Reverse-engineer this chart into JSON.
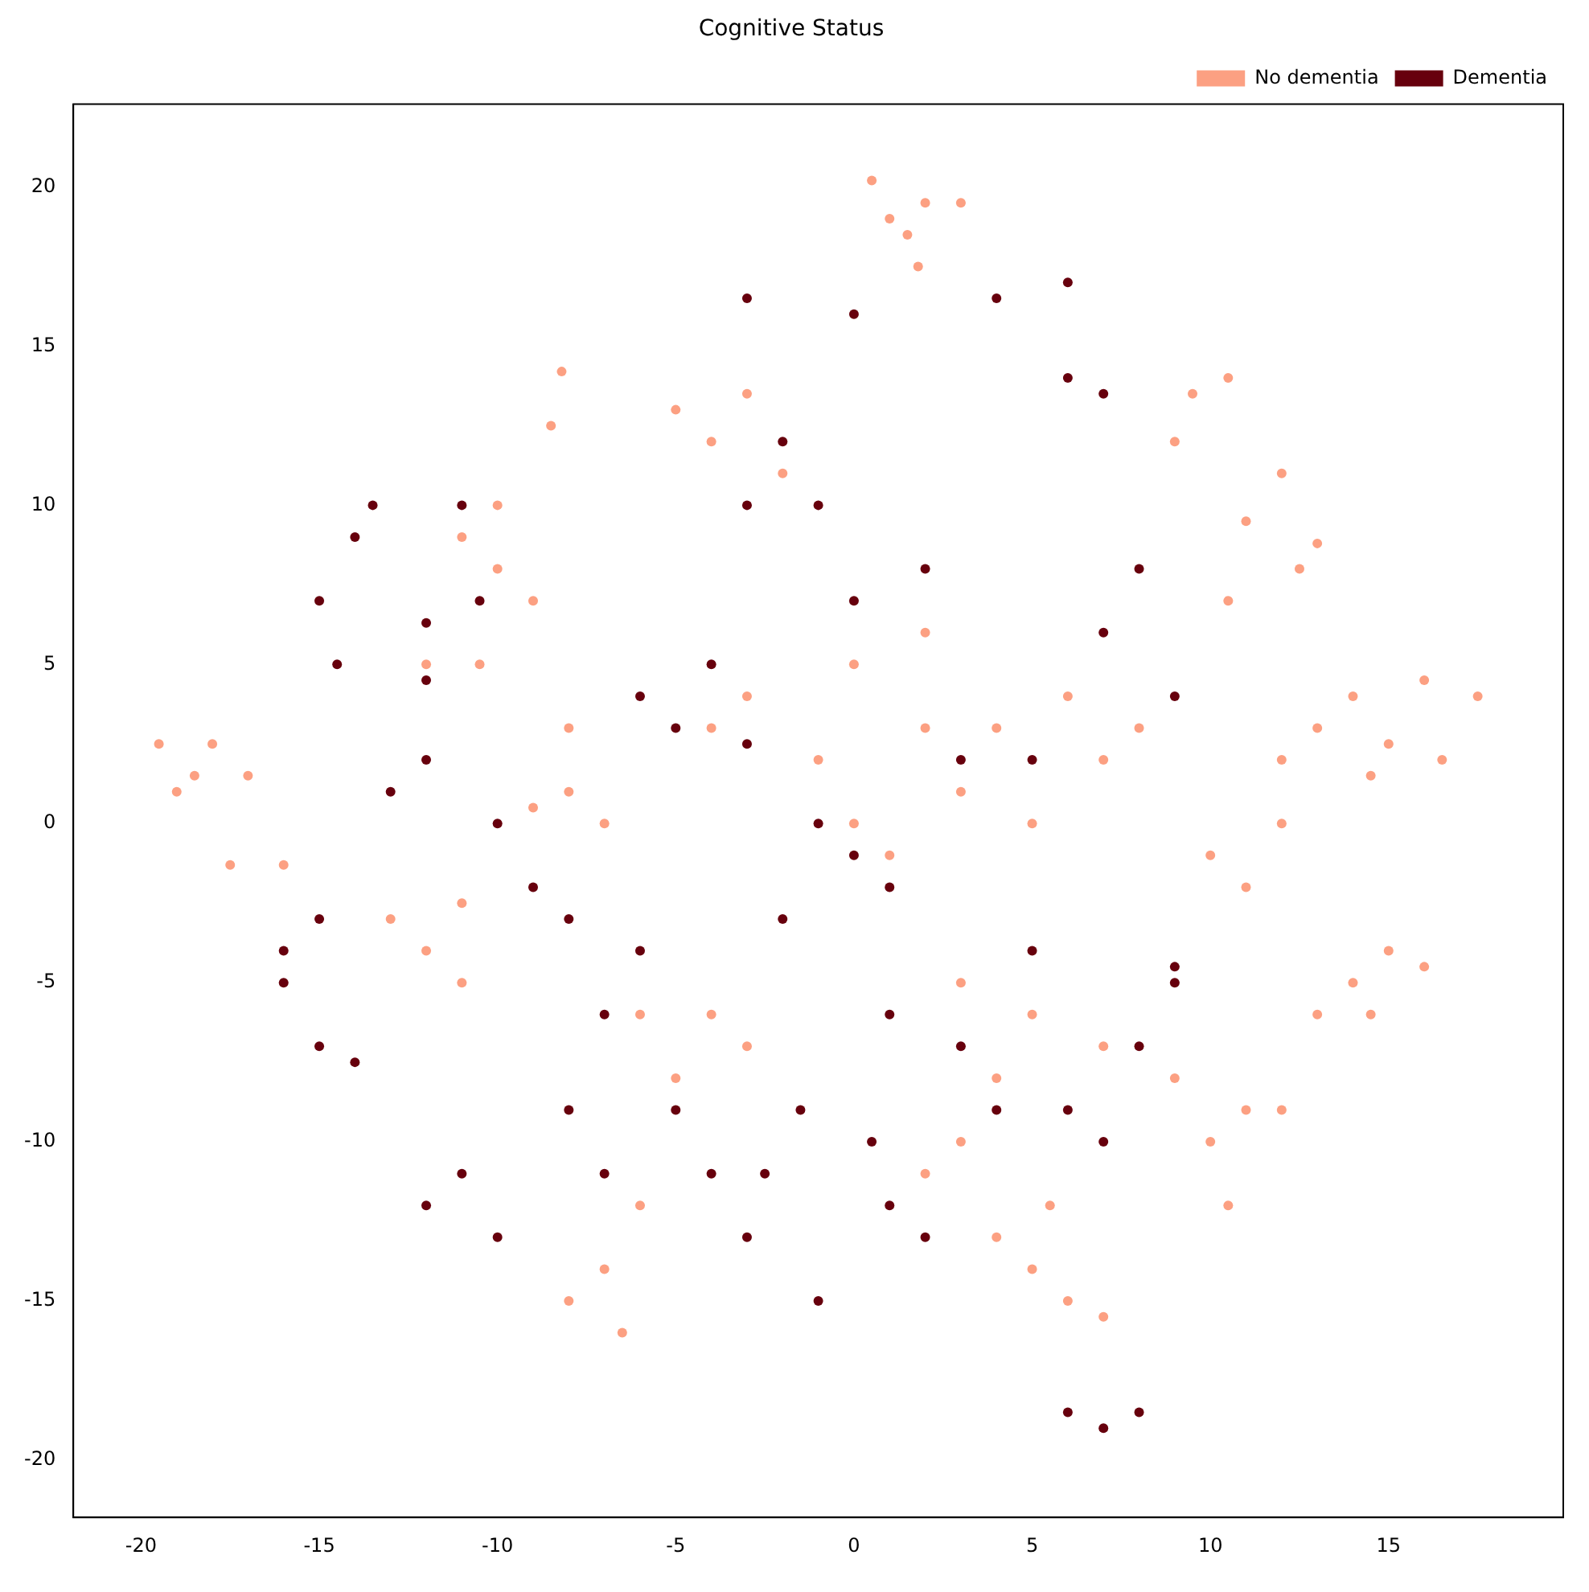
{
  "chart_data": {
    "type": "scatter",
    "title": "Cognitive Status",
    "xlim": [
      -21.9,
      19.9
    ],
    "ylim": [
      -21.8,
      22.6
    ],
    "xticks": [
      -20,
      -15,
      -10,
      -5,
      0,
      5,
      10,
      15
    ],
    "yticks": [
      -20,
      -15,
      -10,
      -5,
      0,
      5,
      10,
      15,
      20
    ],
    "grid": false,
    "legend": "top right",
    "marker": "circle",
    "series": [
      {
        "name": "No dementia",
        "color": "#fca082",
        "x": [
          0.5,
          1,
          2,
          3,
          1.8,
          1.5,
          -19.5,
          -18.5,
          -17,
          -18,
          -19,
          -17.5,
          -16,
          14,
          16,
          17.5,
          15,
          13,
          16.5,
          14.5,
          12,
          15,
          16,
          14,
          13,
          14.5,
          12,
          11,
          12.5,
          13,
          10.5,
          10.5,
          9.5,
          9,
          10,
          11,
          12,
          10.5,
          9,
          5,
          6,
          7,
          4,
          5.5,
          -8,
          -7,
          -6.5,
          -6,
          -13,
          -12,
          -11,
          -11,
          -8,
          -7,
          -8,
          -9,
          -4,
          -3,
          0,
          2,
          4,
          6,
          3,
          5,
          7,
          1,
          2,
          -1,
          0,
          8,
          -11,
          -10,
          -9,
          -10,
          -4,
          -2,
          -5,
          -3,
          -8.2,
          -8.5,
          -12,
          -10.5,
          -4,
          -5,
          -3,
          -6,
          3,
          5,
          4,
          7,
          10,
          11,
          12,
          2,
          3
        ],
        "values": [
          20.2,
          19,
          19.5,
          19.5,
          17.5,
          18.5,
          2.5,
          1.5,
          1.5,
          2.5,
          1,
          -1.3,
          -1.3,
          4,
          4.5,
          4,
          2.5,
          3,
          2,
          1.5,
          2,
          -4,
          -4.5,
          -5,
          -6,
          -6,
          11,
          9.5,
          8,
          8.8,
          7,
          14,
          13.5,
          12,
          -10,
          -9,
          -9,
          -12,
          -8,
          -14,
          -15,
          -15.5,
          -13,
          -12,
          -15,
          -14,
          -16,
          -12,
          -3,
          -4,
          -2.5,
          -5,
          1,
          0,
          3,
          0.5,
          3,
          4,
          5,
          6,
          3,
          4,
          1,
          0,
          2,
          -1,
          3,
          2,
          0,
          3,
          9,
          8,
          7,
          10,
          12,
          11,
          13,
          13.5,
          14.2,
          12.5,
          5,
          5,
          -6,
          -8,
          -7,
          -6,
          -5,
          -6,
          -8,
          -7,
          -1,
          -2,
          0,
          -11,
          -10
        ]
      },
      {
        "name": "Dementia",
        "color": "#67000d",
        "x": [
          -15,
          -14,
          -14.5,
          -13.5,
          -16,
          -15,
          -15,
          -14,
          -16,
          -12,
          -10,
          -11,
          -3,
          -2.5,
          -1.5,
          -1,
          1,
          2,
          0.5,
          6,
          8,
          7,
          9,
          8,
          6,
          7,
          9,
          5,
          -6,
          -4,
          -5,
          -3,
          -10,
          -9,
          -8,
          -6,
          -7,
          -12,
          -13,
          -3,
          0,
          4,
          6,
          7,
          6,
          -2,
          -3,
          0,
          2,
          -1,
          8,
          7,
          9,
          3,
          5,
          1,
          -1,
          -2,
          0,
          -10.5,
          -11,
          -5,
          -4,
          -8,
          -7,
          4,
          3,
          1,
          -12,
          -12
        ],
        "values": [
          7,
          9,
          5,
          10,
          -4,
          -3,
          -7,
          -7.5,
          -5,
          -12,
          -13,
          -11,
          -13,
          -11,
          -9,
          -15,
          -12,
          -13,
          -10,
          -18.5,
          -18.5,
          -19,
          -5,
          -7,
          -9,
          -10,
          -4.5,
          -4,
          4,
          5,
          3,
          2.5,
          0,
          -2,
          -3,
          -4,
          -6,
          2,
          1,
          16.5,
          16,
          16.5,
          17,
          13.5,
          14,
          12,
          10,
          7,
          8,
          10,
          8,
          6,
          4,
          2,
          2,
          -2,
          0,
          -3,
          -1,
          7,
          10,
          -9,
          -11,
          -9,
          -11,
          -9,
          -7,
          -6,
          6.3,
          4.5
        ]
      }
    ]
  }
}
